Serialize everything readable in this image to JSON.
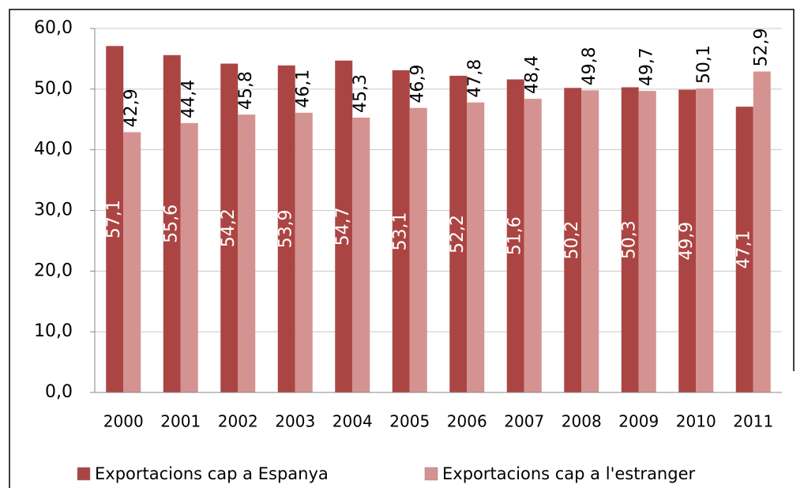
{
  "chart_data": {
    "type": "bar",
    "categories": [
      "2000",
      "2001",
      "2002",
      "2003",
      "2004",
      "2005",
      "2006",
      "2007",
      "2008",
      "2009",
      "2010",
      "2011"
    ],
    "series": [
      {
        "name": "Exportacions cap a Espanya",
        "color": "#ab4543",
        "values": [
          57.1,
          55.6,
          54.2,
          53.9,
          54.7,
          53.1,
          52.2,
          51.6,
          50.2,
          50.3,
          49.9,
          47.1
        ],
        "value_labels": [
          "57,1",
          "55,6",
          "54,2",
          "53,9",
          "54,7",
          "53,1",
          "52,2",
          "51,6",
          "50,2",
          "50,3",
          "49,9",
          "47,1"
        ]
      },
      {
        "name": "Exportacions cap a l'estranger",
        "color": "#d49391",
        "values": [
          42.9,
          44.4,
          45.8,
          46.1,
          45.3,
          46.9,
          47.8,
          48.4,
          49.8,
          49.7,
          50.1,
          52.9
        ],
        "value_labels": [
          "42,9",
          "44,4",
          "45,8",
          "46,1",
          "45,3",
          "46,9",
          "47,8",
          "48,4",
          "49,8",
          "49,7",
          "50,1",
          "52,9"
        ]
      }
    ],
    "ylim": [
      0,
      60
    ],
    "yticks": [
      {
        "value": 0,
        "label": "0,0"
      },
      {
        "value": 10,
        "label": "10,0"
      },
      {
        "value": 20,
        "label": "20,0"
      },
      {
        "value": 30,
        "label": "30,0"
      },
      {
        "value": 40,
        "label": "40,0"
      },
      {
        "value": 50,
        "label": "50,0"
      },
      {
        "value": 60,
        "label": "60,0"
      }
    ],
    "grid": true,
    "legend": "bottom"
  }
}
